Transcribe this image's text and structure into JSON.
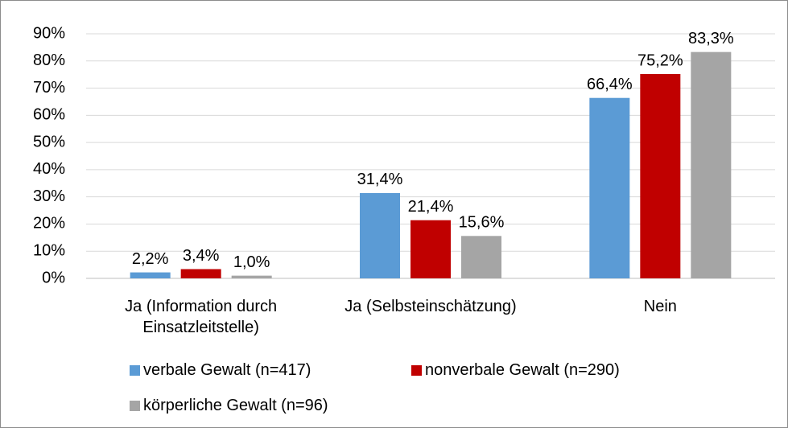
{
  "chart_data": {
    "type": "bar",
    "categories": [
      "Ja (Information durch Einsatzleitstelle)",
      "Ja (Selbsteinschätzung)",
      "Nein"
    ],
    "series": [
      {
        "name": "verbale Gewalt (n=417)",
        "color": "#5b9bd5",
        "values": [
          2.2,
          31.4,
          66.4
        ],
        "value_labels": [
          "2,2%",
          "31,4%",
          "66,4%"
        ]
      },
      {
        "name": "nonverbale Gewalt (n=290)",
        "color": "#c00000",
        "values": [
          3.4,
          21.4,
          75.2
        ],
        "value_labels": [
          "3,4%",
          "21,4%",
          "75,2%"
        ]
      },
      {
        "name": "körperliche Gewalt (n=96)",
        "color": "#a5a5a5",
        "values": [
          1.0,
          15.6,
          83.3
        ],
        "value_labels": [
          "1,0%",
          "15,6%",
          "83,3%"
        ]
      }
    ],
    "ylim": [
      0,
      90
    ],
    "yticks": [
      {
        "value": 0,
        "label": "0%"
      },
      {
        "value": 10,
        "label": "10%"
      },
      {
        "value": 20,
        "label": "20%"
      },
      {
        "value": 30,
        "label": "30%"
      },
      {
        "value": 40,
        "label": "40%"
      },
      {
        "value": 50,
        "label": "50%"
      },
      {
        "value": 60,
        "label": "60%"
      },
      {
        "value": 70,
        "label": "70%"
      },
      {
        "value": 80,
        "label": "80%"
      },
      {
        "value": 90,
        "label": "90%"
      }
    ],
    "grid": true
  }
}
